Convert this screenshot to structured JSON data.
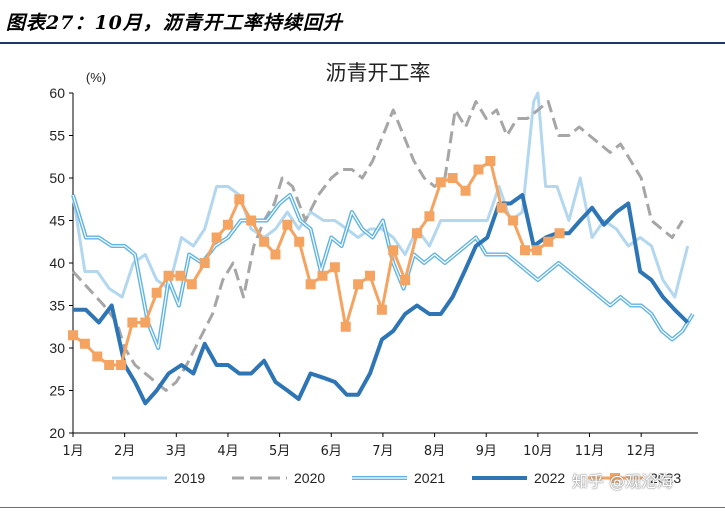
{
  "figure_title": "图表27：10月，沥青开工率持续回升",
  "watermark": "知乎 @观沧海",
  "chart_data": {
    "type": "line",
    "title": "沥青开工率",
    "ylabel": "(%)",
    "ylim": [
      20,
      60
    ],
    "yticks": [
      20,
      25,
      30,
      35,
      40,
      45,
      50,
      55,
      60
    ],
    "categories": [
      "1月",
      "2月",
      "3月",
      "4月",
      "5月",
      "6月",
      "7月",
      "8月",
      "9月",
      "10月",
      "11月",
      "12月"
    ],
    "xlim": [
      1,
      13.1
    ],
    "grid": false,
    "legend": "bottom",
    "series": [
      {
        "name": "2019",
        "color": "#b4d7f0",
        "dash": "solid",
        "width": 3,
        "points": [
          [
            1.0,
            48
          ],
          [
            1.23,
            39
          ],
          [
            1.47,
            39
          ],
          [
            1.7,
            37
          ],
          [
            1.95,
            36
          ],
          [
            2.17,
            40
          ],
          [
            2.4,
            41
          ],
          [
            2.62,
            38
          ],
          [
            2.85,
            37
          ],
          [
            3.1,
            43
          ],
          [
            3.33,
            42
          ],
          [
            3.55,
            44
          ],
          [
            3.78,
            49
          ],
          [
            4.0,
            49
          ],
          [
            4.22,
            48
          ],
          [
            4.45,
            44
          ],
          [
            4.7,
            43
          ],
          [
            4.92,
            44
          ],
          [
            5.15,
            46
          ],
          [
            5.37,
            44
          ],
          [
            5.6,
            46
          ],
          [
            5.85,
            45
          ],
          [
            6.07,
            45
          ],
          [
            6.3,
            44
          ],
          [
            6.52,
            43
          ],
          [
            6.75,
            44
          ],
          [
            6.98,
            44
          ],
          [
            7.2,
            43
          ],
          [
            7.43,
            41
          ],
          [
            7.66,
            44
          ],
          [
            7.9,
            42
          ],
          [
            8.12,
            45
          ],
          [
            8.35,
            45
          ],
          [
            8.58,
            45
          ],
          [
            8.8,
            45
          ],
          [
            9.02,
            45
          ],
          [
            9.25,
            49
          ],
          [
            9.47,
            45
          ],
          [
            9.7,
            46
          ],
          [
            9.92,
            59
          ],
          [
            10.0,
            60
          ],
          [
            10.15,
            49
          ],
          [
            10.37,
            49
          ],
          [
            10.6,
            45
          ],
          [
            10.82,
            50
          ],
          [
            11.05,
            43
          ],
          [
            11.28,
            45
          ],
          [
            11.52,
            44
          ],
          [
            11.75,
            42
          ],
          [
            11.98,
            43
          ],
          [
            12.2,
            42
          ],
          [
            12.42,
            38
          ],
          [
            12.65,
            36
          ],
          [
            12.9,
            42
          ]
        ]
      },
      {
        "name": "2020",
        "color": "#a6a6a6",
        "dash": "dash",
        "width": 3,
        "points": [
          [
            1.0,
            39
          ],
          [
            1.3,
            37
          ],
          [
            1.6,
            35
          ],
          [
            1.85,
            33
          ],
          [
            2.0,
            30
          ],
          [
            2.2,
            28
          ],
          [
            2.4,
            27
          ],
          [
            2.6,
            26
          ],
          [
            2.8,
            25
          ],
          [
            3.0,
            26
          ],
          [
            3.2,
            28
          ],
          [
            3.45,
            31
          ],
          [
            3.7,
            34
          ],
          [
            3.9,
            38
          ],
          [
            4.1,
            40
          ],
          [
            4.3,
            36
          ],
          [
            4.5,
            42
          ],
          [
            4.7,
            45
          ],
          [
            4.9,
            47
          ],
          [
            5.05,
            50
          ],
          [
            5.25,
            49
          ],
          [
            5.5,
            45
          ],
          [
            5.75,
            48
          ],
          [
            6.0,
            50
          ],
          [
            6.2,
            51
          ],
          [
            6.4,
            51
          ],
          [
            6.6,
            50
          ],
          [
            6.8,
            52
          ],
          [
            7.0,
            55
          ],
          [
            7.2,
            58
          ],
          [
            7.4,
            55
          ],
          [
            7.6,
            52
          ],
          [
            7.8,
            50
          ],
          [
            8.0,
            49
          ],
          [
            8.2,
            50
          ],
          [
            8.4,
            58
          ],
          [
            8.6,
            56
          ],
          [
            8.8,
            59
          ],
          [
            9.0,
            57
          ],
          [
            9.2,
            58
          ],
          [
            9.4,
            55
          ],
          [
            9.6,
            57
          ],
          [
            9.8,
            57
          ],
          [
            10.0,
            58
          ],
          [
            10.2,
            59
          ],
          [
            10.4,
            55
          ],
          [
            10.6,
            55
          ],
          [
            10.8,
            56
          ],
          [
            11.0,
            55
          ],
          [
            11.2,
            54
          ],
          [
            11.4,
            53
          ],
          [
            11.6,
            54
          ],
          [
            11.8,
            52
          ],
          [
            12.0,
            50
          ],
          [
            12.2,
            45
          ],
          [
            12.4,
            44
          ],
          [
            12.6,
            43
          ],
          [
            12.8,
            45
          ]
        ]
      },
      {
        "name": "2021",
        "color": "#5fb3e6",
        "dash": "double",
        "width": 3,
        "points": [
          [
            1.0,
            48
          ],
          [
            1.25,
            43
          ],
          [
            1.5,
            43
          ],
          [
            1.75,
            42
          ],
          [
            2.0,
            42
          ],
          [
            2.2,
            41
          ],
          [
            2.45,
            33
          ],
          [
            2.65,
            30
          ],
          [
            2.85,
            38
          ],
          [
            3.05,
            35
          ],
          [
            3.25,
            41
          ],
          [
            3.5,
            40
          ],
          [
            3.75,
            42
          ],
          [
            4.0,
            43
          ],
          [
            4.25,
            45
          ],
          [
            4.5,
            45
          ],
          [
            4.75,
            45
          ],
          [
            5.0,
            47
          ],
          [
            5.2,
            48
          ],
          [
            5.4,
            45
          ],
          [
            5.6,
            44
          ],
          [
            5.8,
            39
          ],
          [
            6.0,
            43
          ],
          [
            6.2,
            42
          ],
          [
            6.4,
            46
          ],
          [
            6.6,
            44
          ],
          [
            6.8,
            43
          ],
          [
            7.0,
            45
          ],
          [
            7.2,
            40
          ],
          [
            7.4,
            37
          ],
          [
            7.6,
            41
          ],
          [
            7.8,
            40
          ],
          [
            8.0,
            41
          ],
          [
            8.2,
            40
          ],
          [
            8.4,
            41
          ],
          [
            8.6,
            42
          ],
          [
            8.8,
            43
          ],
          [
            9.0,
            41
          ],
          [
            9.2,
            41
          ],
          [
            9.4,
            41
          ],
          [
            9.6,
            40
          ],
          [
            9.8,
            39
          ],
          [
            10.0,
            38
          ],
          [
            10.2,
            39
          ],
          [
            10.4,
            40
          ],
          [
            10.6,
            39
          ],
          [
            10.8,
            38
          ],
          [
            11.0,
            37
          ],
          [
            11.2,
            36
          ],
          [
            11.4,
            35
          ],
          [
            11.6,
            36
          ],
          [
            11.8,
            35
          ],
          [
            12.0,
            35
          ],
          [
            12.2,
            34
          ],
          [
            12.4,
            32
          ],
          [
            12.6,
            31
          ],
          [
            12.8,
            32
          ],
          [
            13.0,
            34
          ]
        ]
      },
      {
        "name": "2022",
        "color": "#2e75b6",
        "dash": "solid",
        "width": 4,
        "points": [
          [
            1.0,
            34.5
          ],
          [
            1.25,
            34.5
          ],
          [
            1.5,
            33
          ],
          [
            1.75,
            35
          ],
          [
            2.0,
            28
          ],
          [
            2.2,
            26
          ],
          [
            2.4,
            23.5
          ],
          [
            2.62,
            25
          ],
          [
            2.85,
            27
          ],
          [
            3.1,
            28
          ],
          [
            3.33,
            27
          ],
          [
            3.55,
            30.5
          ],
          [
            3.78,
            28
          ],
          [
            4.0,
            28
          ],
          [
            4.22,
            27
          ],
          [
            4.45,
            27
          ],
          [
            4.7,
            28.5
          ],
          [
            4.92,
            26
          ],
          [
            5.15,
            25
          ],
          [
            5.37,
            24
          ],
          [
            5.6,
            27
          ],
          [
            5.85,
            26.5
          ],
          [
            6.07,
            26
          ],
          [
            6.3,
            24.5
          ],
          [
            6.52,
            24.5
          ],
          [
            6.75,
            27
          ],
          [
            6.98,
            31
          ],
          [
            7.2,
            32
          ],
          [
            7.43,
            34
          ],
          [
            7.66,
            35
          ],
          [
            7.9,
            34
          ],
          [
            8.12,
            34
          ],
          [
            8.35,
            36
          ],
          [
            8.58,
            39
          ],
          [
            8.8,
            42
          ],
          [
            9.02,
            43
          ],
          [
            9.25,
            47
          ],
          [
            9.47,
            47
          ],
          [
            9.7,
            48
          ],
          [
            9.92,
            42
          ],
          [
            10.15,
            43
          ],
          [
            10.37,
            43.5
          ],
          [
            10.6,
            43.5
          ],
          [
            10.82,
            45
          ],
          [
            11.05,
            46.5
          ],
          [
            11.28,
            44.5
          ],
          [
            11.52,
            46
          ],
          [
            11.75,
            47
          ],
          [
            11.98,
            39
          ],
          [
            12.2,
            38
          ],
          [
            12.42,
            36
          ],
          [
            12.65,
            34.5
          ],
          [
            12.9,
            33
          ]
        ]
      },
      {
        "name": "2023",
        "color": "#f4a460",
        "dash": "marker",
        "width": 3,
        "points": [
          [
            1.0,
            31.5
          ],
          [
            1.23,
            30.5
          ],
          [
            1.47,
            29
          ],
          [
            1.7,
            28
          ],
          [
            1.93,
            28
          ],
          [
            2.15,
            33
          ],
          [
            2.4,
            33
          ],
          [
            2.62,
            36.5
          ],
          [
            2.85,
            38.5
          ],
          [
            3.08,
            38.5
          ],
          [
            3.3,
            37.5
          ],
          [
            3.55,
            40
          ],
          [
            3.78,
            43
          ],
          [
            4.0,
            44.5
          ],
          [
            4.22,
            47.5
          ],
          [
            4.45,
            45
          ],
          [
            4.7,
            42.5
          ],
          [
            4.92,
            41
          ],
          [
            5.15,
            44.5
          ],
          [
            5.38,
            42.5
          ],
          [
            5.6,
            37.5
          ],
          [
            5.83,
            38.5
          ],
          [
            6.07,
            39.5
          ],
          [
            6.28,
            32.5
          ],
          [
            6.52,
            37.5
          ],
          [
            6.75,
            38.5
          ],
          [
            6.98,
            34.5
          ],
          [
            7.2,
            41.5
          ],
          [
            7.43,
            38
          ],
          [
            7.66,
            43.5
          ],
          [
            7.9,
            45.5
          ],
          [
            8.12,
            49.5
          ],
          [
            8.35,
            50
          ],
          [
            8.6,
            48.5
          ],
          [
            8.85,
            51
          ],
          [
            9.08,
            52
          ],
          [
            9.3,
            46.5
          ],
          [
            9.52,
            45
          ],
          [
            9.75,
            41.5
          ],
          [
            9.98,
            41.5
          ],
          [
            10.2,
            42.5
          ],
          [
            10.42,
            43.5
          ]
        ]
      }
    ]
  }
}
